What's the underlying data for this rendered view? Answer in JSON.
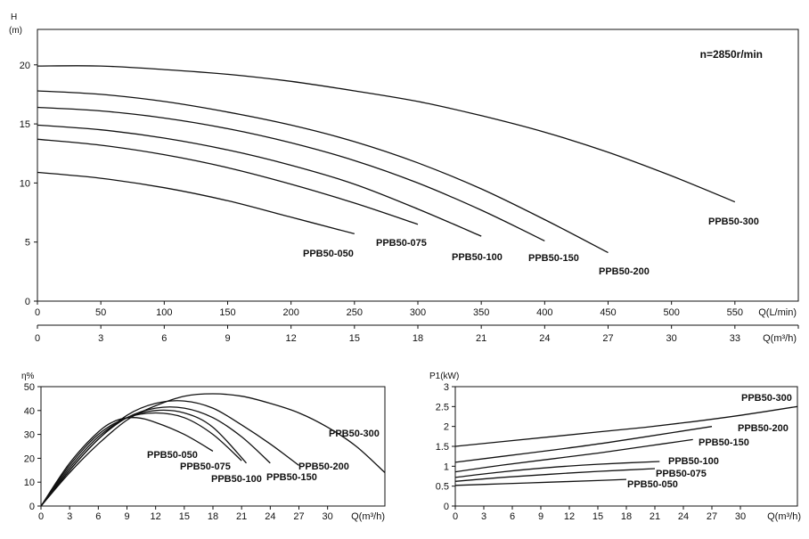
{
  "chart_data": [
    {
      "type": "line",
      "title": "",
      "ylabel": "H",
      "yunit": "(m)",
      "xlabel": "Q(L/min)",
      "x2label": "Q(m³/h)",
      "annotation": "n=2850r/min",
      "xlim": [
        0,
        600
      ],
      "ylim": [
        0,
        23
      ],
      "xticks": [
        0,
        50,
        100,
        150,
        200,
        250,
        300,
        350,
        400,
        450,
        500,
        550
      ],
      "yticks": [
        0,
        5,
        10,
        15,
        20
      ],
      "x2ticks": [
        0,
        3,
        6,
        9,
        12,
        15,
        18,
        21,
        24,
        27,
        30,
        33
      ],
      "series": [
        {
          "name": "PPB50-050",
          "x": [
            0,
            50,
            100,
            150,
            200,
            250
          ],
          "y": [
            10.9,
            10.4,
            9.6,
            8.5,
            7.1,
            5.7
          ]
        },
        {
          "name": "PPB50-075",
          "x": [
            0,
            50,
            100,
            150,
            200,
            250,
            300
          ],
          "y": [
            13.7,
            13.2,
            12.4,
            11.3,
            9.9,
            8.3,
            6.5
          ]
        },
        {
          "name": "PPB50-100",
          "x": [
            0,
            50,
            100,
            150,
            200,
            250,
            300,
            350
          ],
          "y": [
            14.9,
            14.5,
            13.8,
            12.8,
            11.5,
            9.9,
            7.8,
            5.5
          ]
        },
        {
          "name": "PPB50-150",
          "x": [
            0,
            50,
            100,
            150,
            200,
            250,
            300,
            350,
            400
          ],
          "y": [
            16.4,
            16.1,
            15.5,
            14.6,
            13.4,
            11.9,
            10.0,
            7.7,
            5.1
          ]
        },
        {
          "name": "PPB50-200",
          "x": [
            0,
            50,
            100,
            150,
            200,
            250,
            300,
            350,
            400,
            450
          ],
          "y": [
            17.8,
            17.5,
            16.9,
            16.0,
            14.9,
            13.5,
            11.7,
            9.5,
            6.9,
            4.1
          ]
        },
        {
          "name": "PPB50-300",
          "x": [
            0,
            50,
            100,
            150,
            200,
            250,
            300,
            350,
            400,
            450,
            500,
            550
          ],
          "y": [
            19.9,
            19.9,
            19.6,
            19.2,
            18.6,
            17.8,
            16.9,
            15.7,
            14.3,
            12.6,
            10.6,
            8.4
          ]
        }
      ]
    },
    {
      "type": "line",
      "title": "",
      "ylabel": "η%",
      "xlabel": "Q(m³/h)",
      "xlim": [
        0,
        36
      ],
      "ylim": [
        0,
        50
      ],
      "xticks": [
        0,
        3,
        6,
        9,
        12,
        15,
        18,
        21,
        24,
        27,
        30
      ],
      "yticks": [
        0,
        10,
        20,
        30,
        40,
        50
      ],
      "series": [
        {
          "name": "PPB50-050",
          "x": [
            0,
            3,
            6,
            8,
            10,
            12,
            15,
            18
          ],
          "y": [
            0,
            18,
            31,
            36,
            37,
            35,
            30,
            23
          ]
        },
        {
          "name": "PPB50-075",
          "x": [
            0,
            3,
            6,
            9,
            12,
            15,
            18,
            21
          ],
          "y": [
            0,
            17,
            30,
            37,
            39,
            37,
            30,
            19
          ]
        },
        {
          "name": "PPB50-100",
          "x": [
            0,
            3,
            6,
            9,
            12,
            15,
            18,
            21.5
          ],
          "y": [
            0,
            16,
            29,
            37,
            40,
            39,
            33,
            18
          ]
        },
        {
          "name": "PPB50-150",
          "x": [
            0,
            3,
            6,
            9,
            12,
            15,
            18,
            21,
            24
          ],
          "y": [
            0,
            15,
            28,
            37,
            41,
            41,
            37,
            29,
            18
          ]
        },
        {
          "name": "PPB50-200",
          "x": [
            0,
            3,
            6,
            9,
            12,
            15,
            18,
            21,
            24,
            27
          ],
          "y": [
            0,
            15,
            28,
            38,
            43,
            44,
            41,
            34,
            26,
            17
          ]
        },
        {
          "name": "PPB50-300",
          "x": [
            0,
            3,
            6,
            9,
            12,
            15,
            18,
            21,
            24,
            27,
            30,
            33,
            36
          ],
          "y": [
            0,
            14,
            26,
            36,
            42,
            46,
            47,
            46,
            43,
            39,
            33,
            25,
            14
          ]
        }
      ]
    },
    {
      "type": "line",
      "title": "",
      "ylabel": "P1(kW)",
      "xlabel": "Q(m³/h)",
      "xlim": [
        0,
        36
      ],
      "ylim": [
        0,
        3
      ],
      "xticks": [
        0,
        3,
        6,
        9,
        12,
        15,
        18,
        21,
        24,
        27,
        30
      ],
      "yticks": [
        0,
        0.5,
        1,
        1.5,
        2,
        2.5,
        3
      ],
      "series": [
        {
          "name": "PPB50-050",
          "x": [
            0,
            5,
            10,
            15,
            18
          ],
          "y": [
            0.52,
            0.56,
            0.6,
            0.64,
            0.67
          ]
        },
        {
          "name": "PPB50-075",
          "x": [
            0,
            5,
            10,
            15,
            21
          ],
          "y": [
            0.62,
            0.72,
            0.8,
            0.87,
            0.94
          ]
        },
        {
          "name": "PPB50-100",
          "x": [
            0,
            5,
            10,
            15,
            21.5
          ],
          "y": [
            0.72,
            0.86,
            0.97,
            1.05,
            1.12
          ]
        },
        {
          "name": "PPB50-150",
          "x": [
            0,
            5,
            10,
            15,
            20,
            25
          ],
          "y": [
            0.86,
            1.03,
            1.18,
            1.33,
            1.5,
            1.67
          ]
        },
        {
          "name": "PPB50-200",
          "x": [
            0,
            5,
            10,
            15,
            20,
            27
          ],
          "y": [
            1.1,
            1.25,
            1.4,
            1.56,
            1.74,
            2.0
          ]
        },
        {
          "name": "PPB50-300",
          "x": [
            0,
            5,
            10,
            15,
            20,
            25,
            30,
            36
          ],
          "y": [
            1.5,
            1.62,
            1.74,
            1.86,
            1.98,
            2.12,
            2.28,
            2.5
          ]
        }
      ]
    }
  ]
}
